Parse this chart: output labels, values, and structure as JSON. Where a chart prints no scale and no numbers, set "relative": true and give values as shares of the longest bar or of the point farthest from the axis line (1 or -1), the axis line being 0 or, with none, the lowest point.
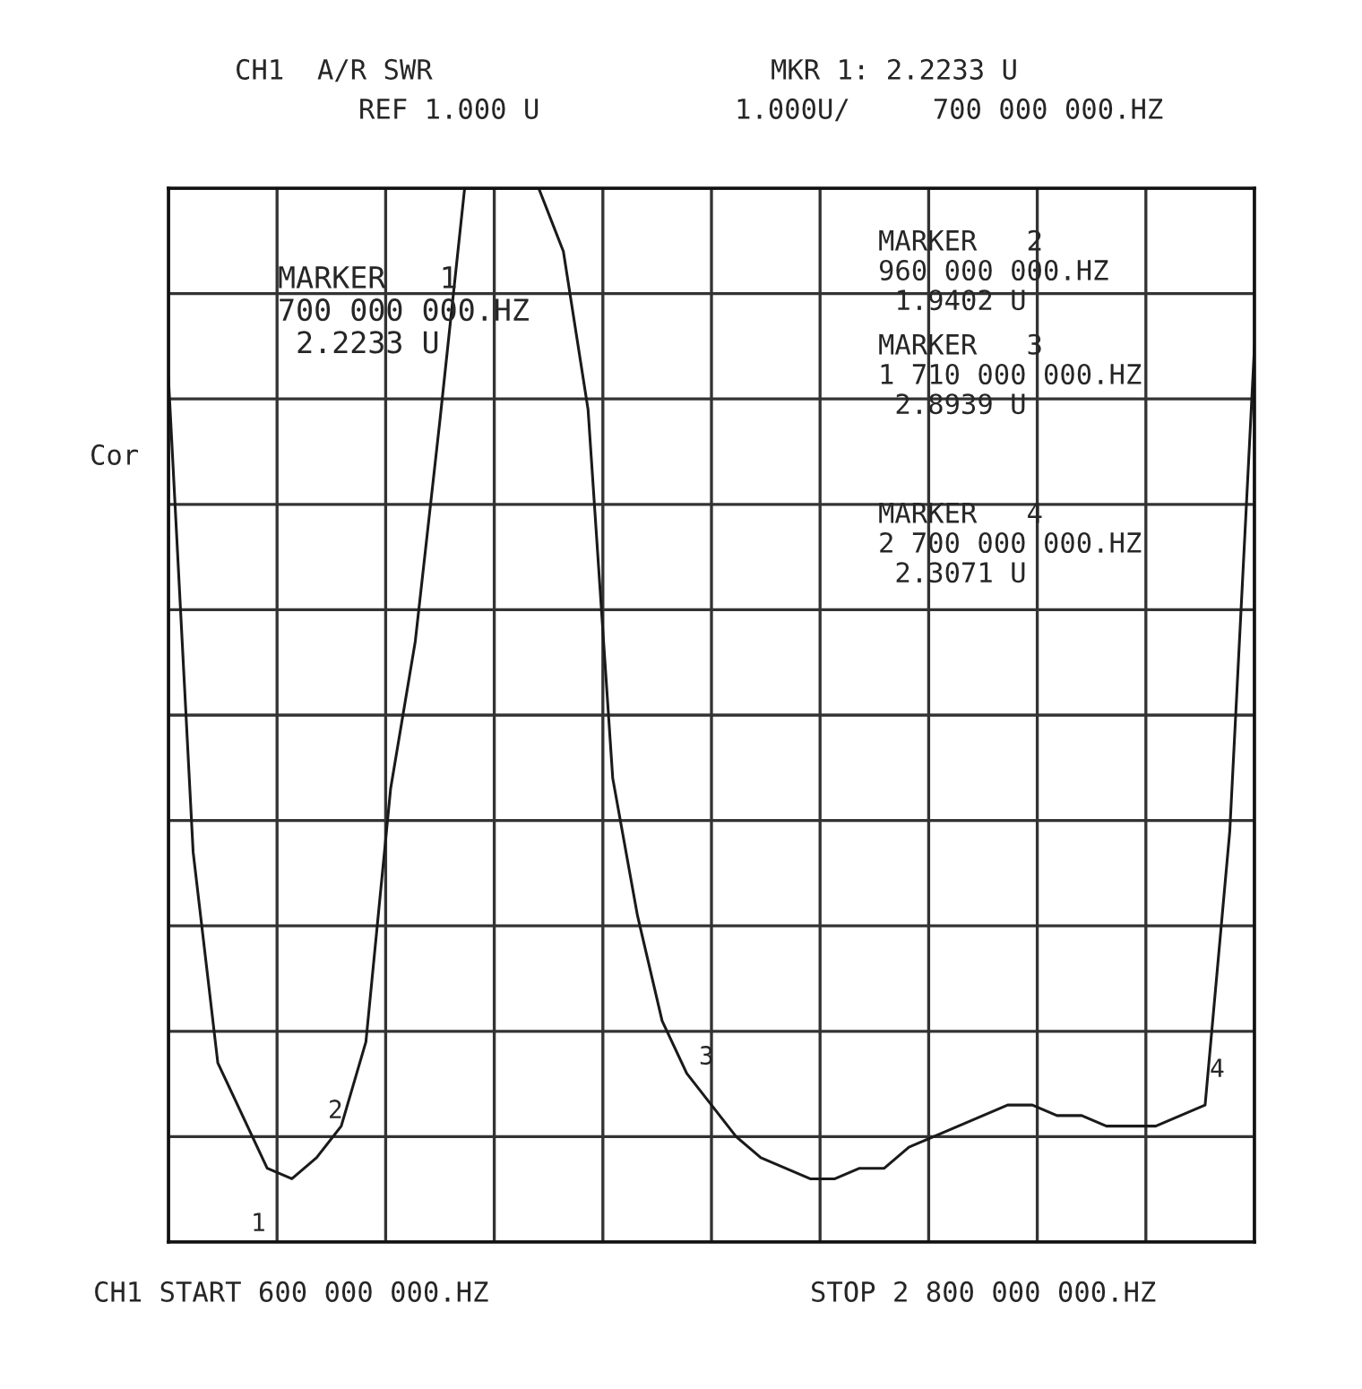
{
  "chart_data": {
    "type": "line",
    "relative": true,
    "categories": [
      null,
      null,
      null,
      null,
      null,
      null,
      null,
      null,
      null,
      null,
      null,
      null,
      null,
      null,
      null,
      null,
      null,
      null,
      null,
      null,
      null,
      null,
      null,
      null,
      null,
      null,
      null,
      null,
      null,
      null,
      null,
      null,
      null,
      null,
      null,
      null,
      null,
      null,
      null,
      null,
      null,
      null,
      null,
      null,
      null
    ],
    "series": [
      {
        "color": "#1a1a1a",
        "values": [
          0.82,
          0.37,
          0.17,
          0.12,
          0.07,
          0.06,
          0.08,
          0.11,
          0.19,
          0.43,
          0.57,
          0.78,
          1.0,
          1.0,
          1.0,
          1.0,
          0.94,
          0.79,
          0.44,
          0.31,
          0.21,
          0.16,
          0.13,
          0.1,
          0.08,
          0.07,
          0.06,
          0.06,
          0.07,
          0.07,
          0.09,
          0.1,
          0.11,
          0.12,
          0.13,
          0.13,
          0.12,
          0.12,
          0.11,
          0.11,
          0.11,
          0.12,
          0.13,
          0.39,
          0.85
        ]
      }
    ],
    "grid": true,
    "line_style": "solid",
    "annotations": [
      "CH1  A/R SWR",
      "REF 1.000 U",
      "MKR 1: 2.2233 U",
      "1.000U/     700 000 000.HZ",
      "Cor",
      "CH1 START 600 000 000.HZ",
      "STOP 2 800 000 000.HZ",
      "MARKER   1\n700 000 000.HZ\n 2.2233 U",
      "MARKER   2\n960 000 000.HZ\n 1.9402 U",
      "MARKER   3\n1 710 000 000.HZ\n 2.8939 U",
      "MARKER   4\n2 700 000 000.HZ\n 2.3071 U",
      "1",
      "2",
      "3",
      "4"
    ]
  }
}
